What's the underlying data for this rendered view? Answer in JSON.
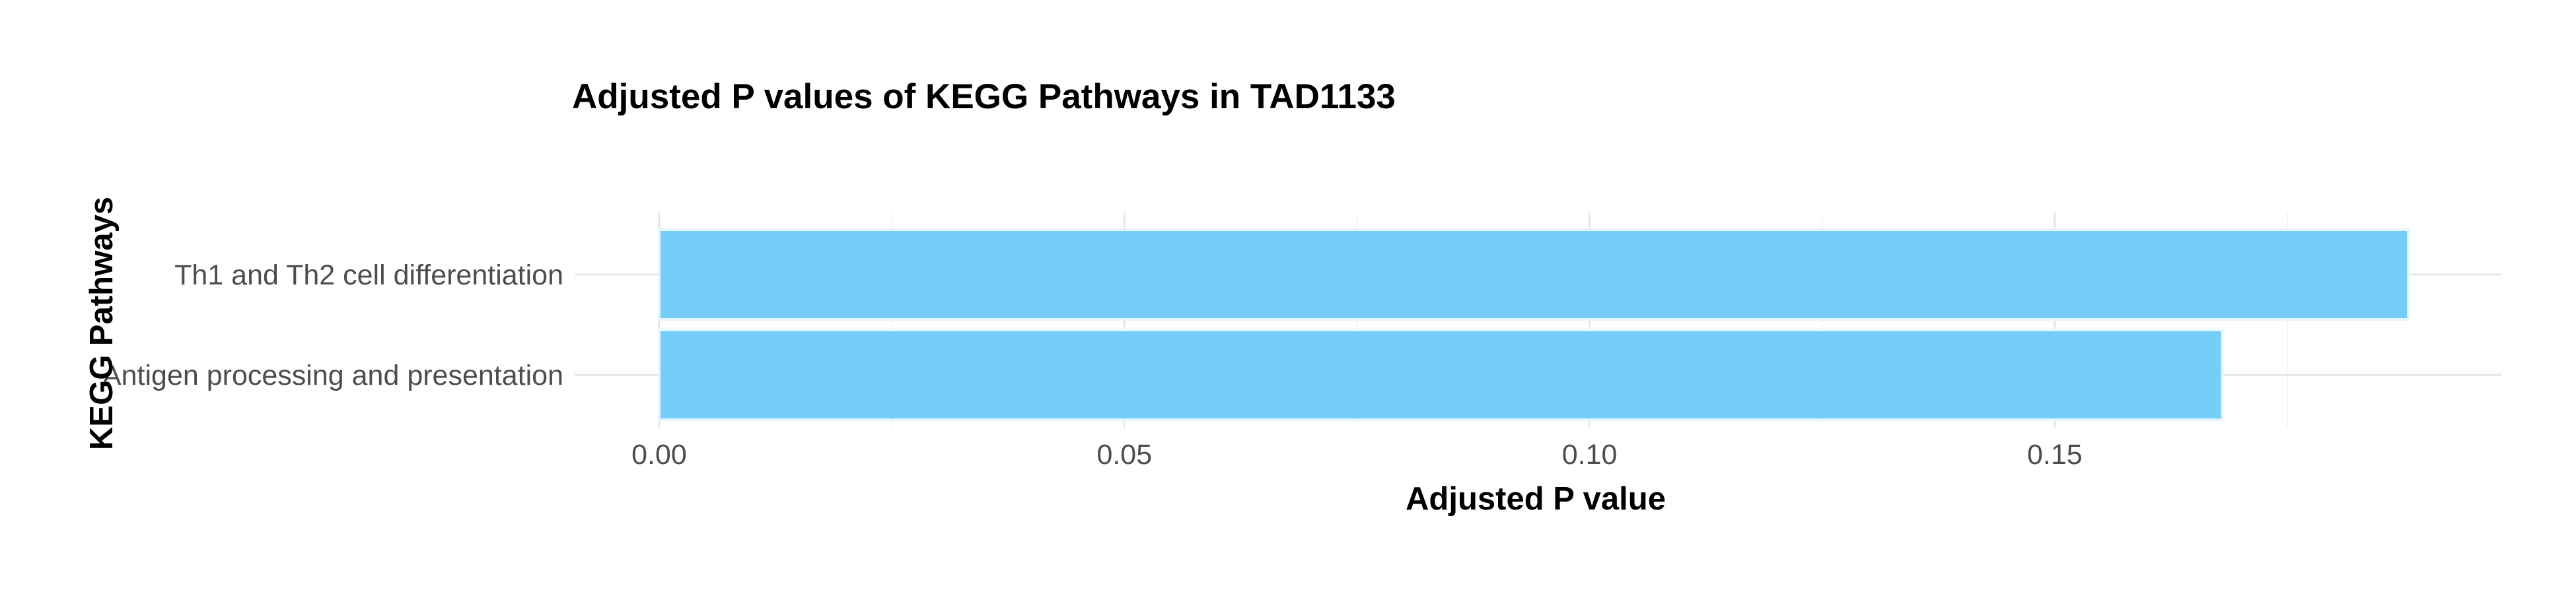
{
  "chart_data": {
    "type": "bar",
    "orientation": "horizontal",
    "title": "Adjusted P values of KEGG Pathways in TAD1133",
    "xlabel": "Adjusted P value",
    "ylabel": "KEGG Pathways",
    "categories": [
      "Th1 and Th2 cell differentiation",
      "Antigen processing and presentation"
    ],
    "values": [
      0.188,
      0.168
    ],
    "xlim": [
      0,
      0.198
    ],
    "xticks": [
      0.0,
      0.05,
      0.1,
      0.15
    ],
    "xtick_labels": [
      "0.00",
      "0.05",
      "0.10",
      "0.15"
    ],
    "grid": true,
    "legend": "none",
    "colors": {
      "bar_fill": "#74CEF9",
      "bar_outline": "#E6F5FF",
      "grid": "#E3E3E3",
      "background": "#FFFFFF"
    }
  }
}
